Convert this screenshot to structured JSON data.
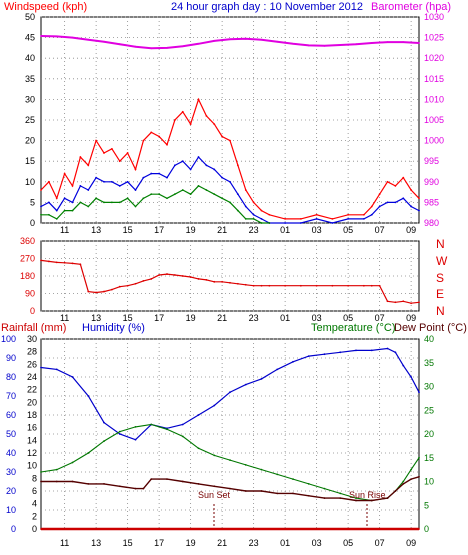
{
  "colors": {
    "wind": "#ff0000",
    "wind_avg": "#0000dd",
    "wind_gust_low": "#008000",
    "pressure": "#e000e0",
    "direction": "#dd0000",
    "rain": "#cc0000",
    "humidity": "#0000cc",
    "temperature": "#007700",
    "dewpoint": "#550000",
    "sun_marker": "#770000"
  },
  "header": {
    "left_label": "Windspeed (kph)",
    "title": "24 hour graph day : 10 November 2012",
    "right_label": "Barometer (hpa)"
  },
  "direction_labels": [
    "N",
    "W",
    "S",
    "E",
    "N"
  ],
  "bottom_header": {
    "rain_label": "Rainfall (mm)",
    "humidity_label": "Humidity (%)",
    "temperature_label": "Temperature (°C)",
    "dewpoint_label": "Dew Point (°C)"
  },
  "annotations": {
    "sunset": "Sun Set",
    "sunrise": "Sun Rise"
  },
  "chart_data": [
    {
      "type": "line",
      "title": "24 hour graph day : 10 November 2012",
      "x_ticks": [
        "11",
        "13",
        "15",
        "17",
        "19",
        "21",
        "23",
        "01",
        "03",
        "05",
        "07",
        "09"
      ],
      "y_left_ticks": [
        "0",
        "5",
        "10",
        "15",
        "20",
        "25",
        "30",
        "35",
        "40",
        "45",
        "50"
      ],
      "y_left_label": "Windspeed (kph)",
      "ylim_left": [
        0,
        50
      ],
      "y_right_ticks": [
        "980",
        "985",
        "990",
        "995",
        "1000",
        "1005",
        "1010",
        "1015",
        "1020",
        "1025",
        "1030"
      ],
      "y_right_label": "Barometer (hpa)",
      "ylim_right": [
        980,
        1030
      ],
      "series": [
        {
          "name": "Barometer (hpa)",
          "x": [
            9.5,
            10.5,
            11.5,
            12.5,
            13.5,
            14.5,
            15.5,
            16.5,
            17.5,
            18.5,
            19.5,
            20.5,
            21.5,
            22.5,
            23.5,
            24.5,
            25.5,
            26.5,
            27.5,
            28.5,
            29.5,
            30.5,
            31.5,
            32.5,
            33.5
          ],
          "values": [
            1025.4,
            1025.3,
            1025.0,
            1024.5,
            1024.0,
            1023.4,
            1022.8,
            1022.4,
            1022.5,
            1022.9,
            1023.5,
            1024.2,
            1024.6,
            1024.7,
            1024.5,
            1024.0,
            1023.5,
            1023.1,
            1023.0,
            1023.2,
            1023.4,
            1023.7,
            1023.9,
            1023.9,
            1023.7
          ]
        },
        {
          "name": "Wind gust (kph)",
          "x": [
            9.5,
            10,
            10.5,
            11,
            11.5,
            12,
            12.5,
            13,
            13.5,
            14,
            14.5,
            15,
            15.5,
            16,
            16.5,
            17,
            17.5,
            18,
            18.5,
            19,
            19.5,
            20,
            20.5,
            21,
            21.5,
            22,
            22.5,
            23,
            23.5,
            24,
            25,
            26,
            27,
            28,
            29,
            30,
            30.5,
            31,
            31.5,
            32,
            32.5,
            33,
            33.5
          ],
          "values": [
            8,
            10,
            6,
            12,
            9,
            16,
            14,
            20,
            17,
            18,
            15,
            17,
            13,
            20,
            22,
            21,
            19,
            25,
            27,
            24,
            30,
            26,
            24,
            21,
            20,
            14,
            8,
            5,
            3,
            2,
            1,
            1,
            2,
            1,
            2,
            2,
            4,
            7,
            10,
            9,
            11,
            8,
            6
          ]
        },
        {
          "name": "Average wind (kph)",
          "x": [
            9.5,
            10,
            10.5,
            11,
            11.5,
            12,
            12.5,
            13,
            13.5,
            14,
            14.5,
            15,
            15.5,
            16,
            16.5,
            17,
            17.5,
            18,
            18.5,
            19,
            19.5,
            20,
            20.5,
            21,
            21.5,
            22,
            22.5,
            23,
            23.5,
            24,
            25,
            26,
            27,
            28,
            29,
            30,
            30.5,
            31,
            31.5,
            32,
            32.5,
            33,
            33.5
          ],
          "values": [
            4,
            5,
            3,
            6,
            5,
            9,
            8,
            11,
            10,
            10,
            9,
            10,
            8,
            11,
            12,
            12,
            11,
            14,
            15,
            13,
            16,
            14,
            13,
            11,
            10,
            7,
            4,
            2,
            1,
            0,
            0,
            0,
            1,
            0,
            1,
            1,
            2,
            4,
            5,
            5,
            6,
            4,
            3
          ]
        },
        {
          "name": "Wind low (kph)",
          "x": [
            9.5,
            10,
            10.5,
            11,
            11.5,
            12,
            12.5,
            13,
            13.5,
            14,
            14.5,
            15,
            15.5,
            16,
            16.5,
            17,
            17.5,
            18,
            18.5,
            19,
            19.5,
            20,
            20.5,
            21,
            21.5,
            22,
            22.5,
            23,
            23.5,
            24
          ],
          "values": [
            2,
            2,
            1,
            3,
            3,
            5,
            4,
            6,
            5,
            5,
            5,
            6,
            4,
            6,
            7,
            7,
            6,
            7,
            8,
            7,
            9,
            8,
            7,
            6,
            5,
            3,
            1,
            1,
            0,
            0
          ]
        }
      ]
    },
    {
      "type": "line",
      "title": "",
      "x_ticks": [
        "11",
        "13",
        "15",
        "17",
        "19",
        "21",
        "23",
        "01",
        "03",
        "05",
        "07",
        "09"
      ],
      "y_left_ticks": [
        "0",
        "90",
        "180",
        "270",
        "360"
      ],
      "ylim": [
        0,
        360
      ],
      "series": [
        {
          "name": "Wind direction (degrees)",
          "x": [
            9.5,
            10,
            10.5,
            11,
            11.5,
            12,
            12.5,
            13,
            13.5,
            14,
            14.5,
            15,
            15.5,
            16,
            16.5,
            17,
            17.5,
            18,
            18.5,
            19,
            19.5,
            20,
            20.5,
            21,
            21.5,
            22,
            22.5,
            23,
            23.5,
            24,
            25,
            26,
            27,
            28,
            29,
            30,
            30.5,
            31,
            31.5,
            32,
            32.5,
            33,
            33.5
          ],
          "values": [
            260,
            255,
            250,
            248,
            245,
            240,
            100,
            95,
            100,
            110,
            125,
            130,
            140,
            155,
            165,
            185,
            190,
            185,
            180,
            175,
            165,
            160,
            150,
            150,
            145,
            140,
            135,
            130,
            130,
            130,
            130,
            130,
            130,
            130,
            130,
            130,
            130,
            130,
            50,
            45,
            50,
            40,
            45
          ]
        }
      ]
    },
    {
      "type": "line",
      "title": "",
      "x_ticks": [
        "11",
        "13",
        "15",
        "17",
        "19",
        "21",
        "23",
        "01",
        "03",
        "05",
        "07",
        "09"
      ],
      "y_left_ticks": [
        "0",
        "10",
        "20",
        "30",
        "40",
        "50",
        "60",
        "70",
        "80",
        "90",
        "100"
      ],
      "y_left2_ticks": [
        "0",
        "2",
        "4",
        "6",
        "8",
        "10",
        "12",
        "14",
        "16",
        "18",
        "20",
        "22",
        "24",
        "26",
        "28",
        "30"
      ],
      "y_right_ticks": [
        "0",
        "5",
        "10",
        "15",
        "20",
        "25",
        "30",
        "35",
        "40"
      ],
      "ylim_humidity": [
        0,
        100
      ],
      "ylim_rain": [
        0,
        30
      ],
      "ylim_temperature": [
        0,
        40
      ],
      "series": [
        {
          "name": "Humidity (%)",
          "x": [
            9.5,
            10.5,
            11.5,
            12.5,
            13.5,
            14.5,
            15.5,
            16.5,
            17.5,
            18.5,
            19.5,
            20.5,
            21.5,
            22.5,
            23.5,
            24.5,
            25.5,
            26.5,
            27.5,
            28.5,
            29.5,
            30.5,
            31.5,
            32,
            32.5,
            33,
            33.5
          ],
          "values": [
            85,
            84,
            80,
            70,
            56,
            50,
            47,
            55,
            53,
            55,
            60,
            65,
            72,
            76,
            79,
            84,
            88,
            91,
            92,
            93,
            94,
            94,
            95,
            93,
            86,
            80,
            72
          ]
        },
        {
          "name": "Temperature (°C)",
          "x": [
            9.5,
            10.5,
            11.5,
            12.5,
            13.5,
            14.5,
            15.5,
            16.5,
            17.5,
            18.5,
            19.5,
            20.5,
            21.5,
            22.5,
            23.5,
            24.5,
            25.5,
            26.5,
            27.5,
            28.5,
            29.5,
            30.5,
            31.5,
            32,
            32.5,
            33,
            33.5
          ],
          "values": [
            12,
            12.5,
            14,
            16,
            18.5,
            20.5,
            21.5,
            22,
            21,
            19.5,
            17,
            15.5,
            14.5,
            13.5,
            12.5,
            11.5,
            10.5,
            9.5,
            8.5,
            7.5,
            6.5,
            6,
            6.5,
            8,
            10,
            12.5,
            15
          ]
        },
        {
          "name": "Dew Point (°C)",
          "x": [
            9.5,
            10.5,
            11.5,
            12.5,
            13.5,
            14.5,
            15.5,
            16,
            16.5,
            17.5,
            18.5,
            19.5,
            20.5,
            21.5,
            22.5,
            23.5,
            24.5,
            25.5,
            26.5,
            27.5,
            28.5,
            29.5,
            30.5,
            31.5,
            32,
            32.5,
            33,
            33.5
          ],
          "values": [
            10,
            10,
            10,
            9.5,
            9.5,
            9,
            8.5,
            8.5,
            10.5,
            10.5,
            10,
            9.5,
            9,
            8.5,
            8,
            8,
            7.5,
            7.5,
            7,
            6.5,
            6.5,
            6,
            6,
            6.5,
            8,
            9.5,
            10.5,
            11
          ]
        },
        {
          "name": "Rainfall (mm)",
          "x": [
            9.5,
            33.5
          ],
          "values": [
            0,
            0
          ]
        }
      ]
    }
  ]
}
